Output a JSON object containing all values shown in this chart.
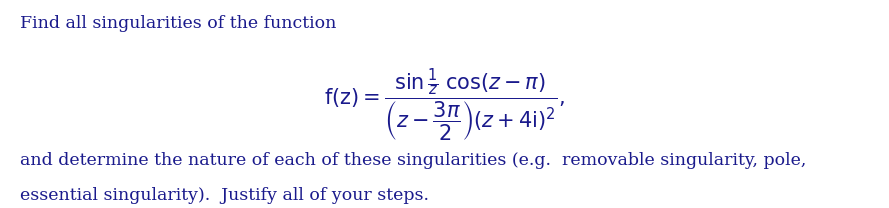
{
  "bg_color": "#ffffff",
  "text_color": "#1a1a8c",
  "line1": "Find all singularities of the function",
  "line3": "and determine the nature of each of these singularities (e.g.  removable singularity, pole,",
  "line4": "essential singularity).  Justify all of your steps.",
  "font_size_text": 12.5,
  "font_size_formula": 15,
  "fig_width": 8.89,
  "fig_height": 2.08,
  "dpi": 100
}
